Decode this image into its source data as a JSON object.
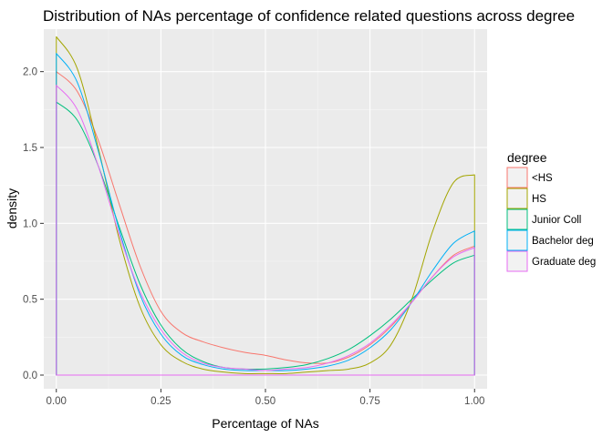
{
  "chart_data": {
    "type": "line",
    "title": "Distribution of NAs percentage of confidence related questions across degree",
    "xlabel": "Percentage of NAs",
    "ylabel": "density",
    "xlim": [
      -0.03,
      1.03
    ],
    "ylim": [
      -0.09,
      2.28
    ],
    "x_ticks": [
      0.0,
      0.25,
      0.5,
      0.75,
      1.0
    ],
    "x_tick_labels": [
      "0.00",
      "0.25",
      "0.50",
      "0.75",
      "1.00"
    ],
    "y_ticks": [
      0.0,
      0.5,
      1.0,
      1.5,
      2.0
    ],
    "y_tick_labels": [
      "0.0",
      "0.5",
      "1.0",
      "1.5",
      "2.0"
    ],
    "grid": true,
    "legend": {
      "title": "degree",
      "position": "right"
    },
    "x": [
      0.0,
      0.05,
      0.1,
      0.15,
      0.2,
      0.25,
      0.3,
      0.35,
      0.4,
      0.45,
      0.5,
      0.55,
      0.6,
      0.65,
      0.7,
      0.75,
      0.8,
      0.85,
      0.9,
      0.95,
      1.0
    ],
    "series": [
      {
        "name": "<HS",
        "color": "#F8766D",
        "values": [
          2.0,
          1.87,
          1.55,
          1.13,
          0.72,
          0.42,
          0.28,
          0.22,
          0.18,
          0.15,
          0.13,
          0.1,
          0.08,
          0.08,
          0.12,
          0.2,
          0.32,
          0.48,
          0.65,
          0.79,
          0.85
        ]
      },
      {
        "name": "HS",
        "color": "#A3A500",
        "values": [
          2.23,
          2.02,
          1.5,
          0.9,
          0.45,
          0.2,
          0.09,
          0.04,
          0.02,
          0.01,
          0.01,
          0.01,
          0.02,
          0.03,
          0.04,
          0.08,
          0.2,
          0.5,
          0.95,
          1.27,
          1.32
        ]
      },
      {
        "name": "Junior Coll",
        "color": "#00BF7D",
        "values": [
          1.8,
          1.68,
          1.38,
          0.98,
          0.6,
          0.33,
          0.17,
          0.09,
          0.05,
          0.04,
          0.04,
          0.05,
          0.07,
          0.11,
          0.17,
          0.26,
          0.37,
          0.5,
          0.63,
          0.74,
          0.79
        ]
      },
      {
        "name": "Bachelor deg",
        "color": "#00B0F6",
        "values": [
          2.12,
          1.93,
          1.48,
          0.96,
          0.53,
          0.27,
          0.13,
          0.07,
          0.04,
          0.03,
          0.03,
          0.03,
          0.04,
          0.06,
          0.1,
          0.18,
          0.3,
          0.48,
          0.69,
          0.87,
          0.95
        ]
      },
      {
        "name": "Graduate deg",
        "color": "#E76BF3",
        "values": [
          1.91,
          1.75,
          1.38,
          0.93,
          0.55,
          0.3,
          0.15,
          0.08,
          0.05,
          0.04,
          0.03,
          0.04,
          0.05,
          0.08,
          0.13,
          0.21,
          0.33,
          0.48,
          0.65,
          0.78,
          0.84
        ]
      }
    ]
  }
}
